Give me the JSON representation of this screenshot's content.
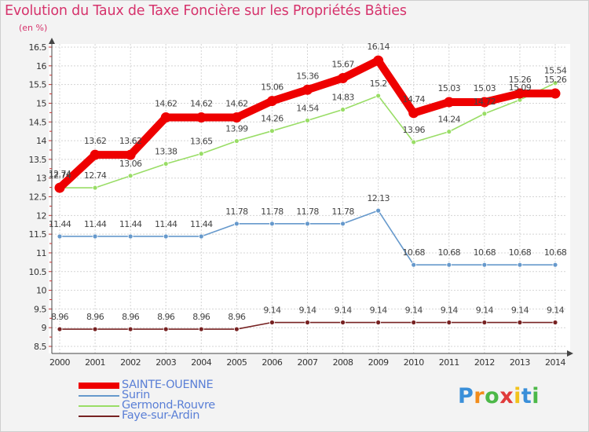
{
  "header": {
    "title": "Evolution du Taux de Taxe Foncière sur les Propriétés Bâties",
    "subtitle": "(en %)"
  },
  "logo": {
    "letters": [
      "P",
      "r",
      "o",
      "x",
      "i",
      "t",
      "i"
    ],
    "colors": [
      "#3a8fd9",
      "#f28c1b",
      "#4cb848",
      "#e03b3b",
      "#f2c21b",
      "#3a8fd9",
      "#4cb848"
    ]
  },
  "chart_data": {
    "type": "line",
    "title": "Evolution du Taux de Taxe Foncière sur les Propriétés Bâties",
    "ylabel": "(en %)",
    "categories": [
      "2000",
      "2001",
      "2002",
      "2003",
      "2004",
      "2005",
      "2006",
      "2007",
      "2008",
      "2009",
      "2010",
      "2011",
      "2012",
      "2013",
      "2014"
    ],
    "ylim": [
      8.5,
      16.5
    ],
    "yticks": [
      "8.5",
      "9",
      "9.5",
      "10",
      "10.5",
      "11",
      "11.5",
      "12",
      "12.5",
      "13",
      "13.5",
      "14",
      "14.5",
      "15",
      "15.5",
      "16",
      "16.5"
    ],
    "grid": true,
    "series": [
      {
        "name": "SAINTE-OUENNE",
        "color": "#ee0000",
        "values": [
          12.74,
          13.62,
          13.62,
          14.62,
          14.62,
          14.62,
          15.06,
          15.36,
          15.67,
          16.14,
          14.74,
          15.03,
          15.03,
          15.26,
          15.26
        ],
        "labels": [
          "12.74",
          "13.62",
          "13.62",
          "14.62",
          "14.62",
          "14.62",
          "15.06",
          "15.36",
          "15.67",
          "16.14",
          "14.74",
          "15.03",
          "15.03",
          "15.26",
          "15.26"
        ]
      },
      {
        "name": "Surin",
        "color": "#6699cc",
        "values": [
          11.44,
          11.44,
          11.44,
          11.44,
          11.44,
          11.78,
          11.78,
          11.78,
          11.78,
          12.13,
          10.68,
          10.68,
          10.68,
          10.68,
          10.68
        ],
        "labels": [
          "11.44",
          "11.44",
          "11.44",
          "11.44",
          "11.44",
          "11.78",
          "11.78",
          "11.78",
          "11.78",
          "12.13",
          "10.68",
          "10.68",
          "10.68",
          "10.68",
          "10.68"
        ]
      },
      {
        "name": "Germond-Rouvre",
        "color": "#99dd66",
        "values": [
          12.74,
          12.74,
          13.06,
          13.38,
          13.65,
          13.99,
          14.26,
          14.54,
          14.83,
          15.2,
          13.96,
          14.24,
          14.72,
          15.09,
          15.54
        ],
        "labels": [
          "12.74",
          "12.74",
          "13.06",
          "13.38",
          "13.65",
          "13.99",
          "14.26",
          "14.54",
          "14.83",
          "15.2",
          "13.96",
          "14.24",
          "14.72",
          "15.09",
          "15.54"
        ]
      },
      {
        "name": "Faye-sur-Ardin",
        "color": "#772222",
        "values": [
          8.96,
          8.96,
          8.96,
          8.96,
          8.96,
          8.96,
          9.14,
          9.14,
          9.14,
          9.14,
          9.14,
          9.14,
          9.14,
          9.14,
          9.14
        ],
        "labels": [
          "8.96",
          "8.96",
          "8.96",
          "8.96",
          "8.96",
          "8.96",
          "9.14",
          "9.14",
          "9.14",
          "9.14",
          "9.14",
          "9.14",
          "9.14",
          "9.14",
          "9.14"
        ]
      }
    ]
  }
}
